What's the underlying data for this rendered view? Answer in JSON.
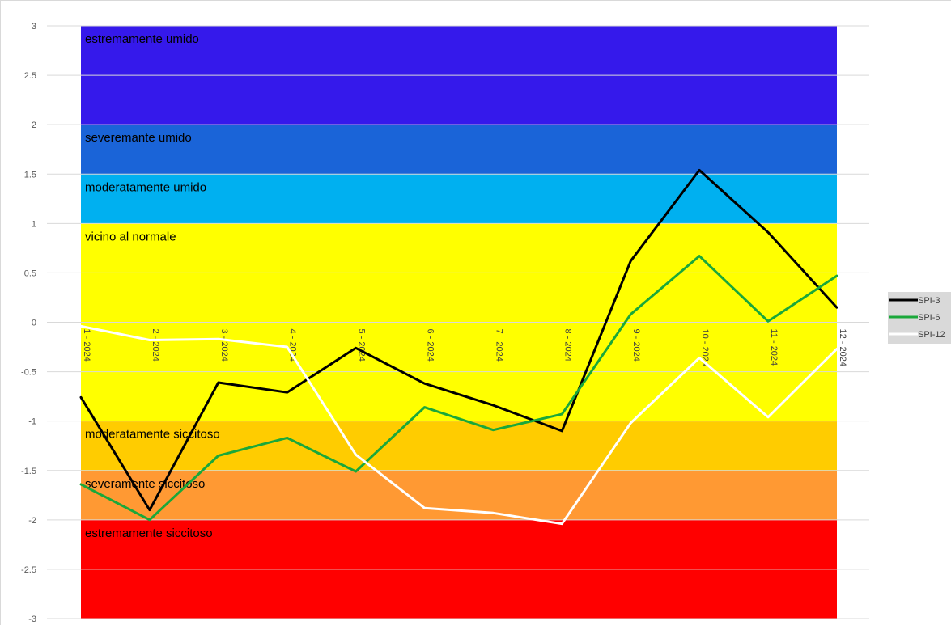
{
  "chart_data": {
    "type": "line",
    "x": [
      "1 - 2024",
      "2 - 2024",
      "3 - 2024",
      "4 - 2024",
      "5 - 2024",
      "6 - 2024",
      "7 - 2024",
      "8 - 2024",
      "9 - 2024",
      "10 - 2024",
      "11 - 2024",
      "12 - 2024"
    ],
    "ylim": [
      -3,
      3
    ],
    "yticks": [
      "3",
      "2.5",
      "2",
      "1.5",
      "1",
      "0.5",
      "0",
      "-0.5",
      "-1",
      "-1.5",
      "-2",
      "-2.5",
      "-3"
    ],
    "ytick_values": [
      3,
      2.5,
      2,
      1.5,
      1,
      0.5,
      0,
      -0.5,
      -1,
      -1.5,
      -2,
      -2.5,
      -3
    ],
    "grid": true,
    "legend_position": "right",
    "bands": [
      {
        "label": "estremamente umido",
        "from": 2,
        "to": 3,
        "color": "#3519eb"
      },
      {
        "label": "severemante umido",
        "from": 1.5,
        "to": 2,
        "color": "#1a64d8"
      },
      {
        "label": "moderatamente umido",
        "from": 1,
        "to": 1.5,
        "color": "#00b0f0"
      },
      {
        "label": "vicino al normale",
        "from": -1,
        "to": 1,
        "color": "#ffff00"
      },
      {
        "label": "moderatamente siccitoso",
        "from": -1.5,
        "to": -1,
        "color": "#ffcc00"
      },
      {
        "label": "severamente siccitoso",
        "from": -2,
        "to": -1.5,
        "color": "#ff9933"
      },
      {
        "label": "estremamente siccitoso",
        "from": -3,
        "to": -2,
        "color": "#ff0000"
      }
    ],
    "series": [
      {
        "name": "SPI-3",
        "color": "#000000",
        "values": [
          -0.76,
          -1.9,
          -0.61,
          -0.71,
          -0.26,
          -0.62,
          -0.84,
          -1.1,
          0.62,
          1.54,
          0.91,
          0.15
        ]
      },
      {
        "name": "SPI-6",
        "color": "#1aa83a",
        "values": [
          -1.64,
          -2.0,
          -1.35,
          -1.17,
          -1.51,
          -0.86,
          -1.09,
          -0.93,
          0.08,
          0.67,
          0.01,
          0.47
        ]
      },
      {
        "name": "SPI-12",
        "color": "#ffffff",
        "values": [
          -0.04,
          -0.18,
          -0.17,
          -0.25,
          -1.34,
          -1.88,
          -1.93,
          -2.04,
          -1.02,
          -0.36,
          -0.96,
          -0.27
        ]
      }
    ]
  }
}
